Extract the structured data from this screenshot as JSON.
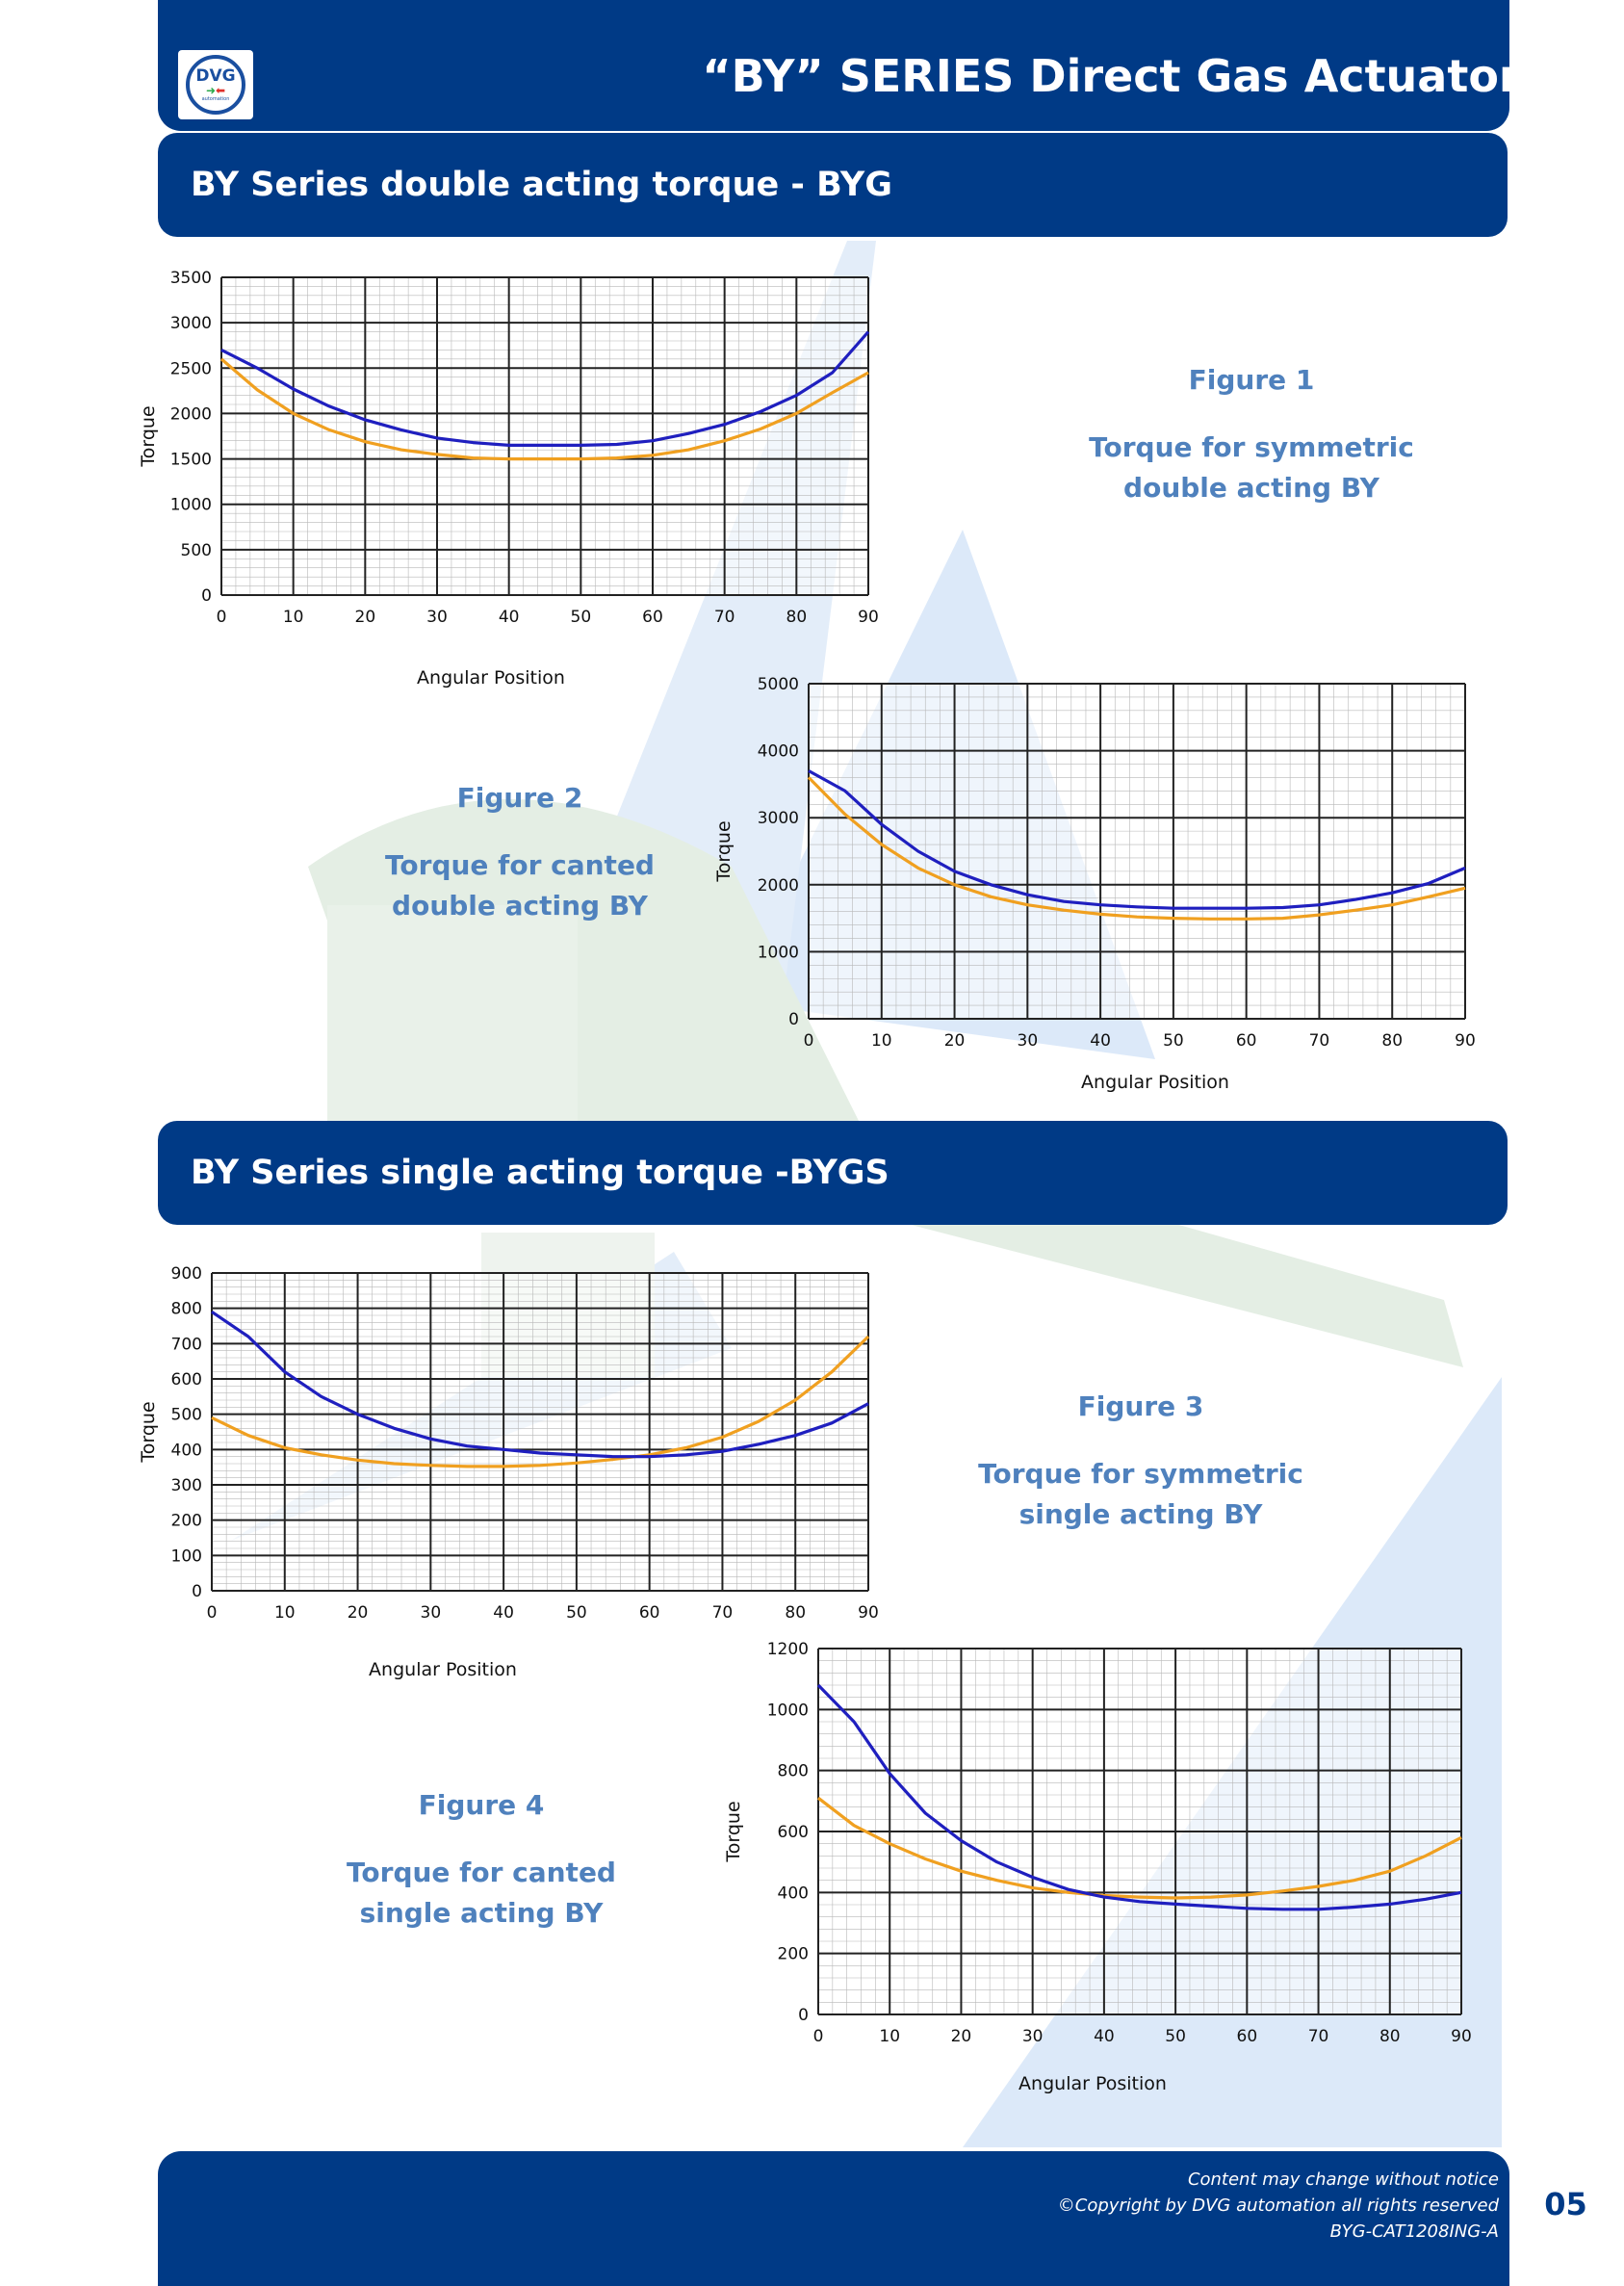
{
  "header": {
    "title": "“BY” SERIES Direct Gas Actuators",
    "logo_text": "DVG",
    "logo_sub": "automation"
  },
  "sections": [
    {
      "title": "BY Series double acting torque - BYG"
    },
    {
      "title": "BY Series single acting torque -BYGS"
    }
  ],
  "figures": [
    {
      "figure_label": "Figure 1",
      "caption_line1": "Torque for symmetric",
      "caption_line2": "double acting BY"
    },
    {
      "figure_label": "Figure 2",
      "caption_line1": "Torque for canted",
      "caption_line2": "double acting BY"
    },
    {
      "figure_label": "Figure 3",
      "caption_line1": "Torque for symmetric",
      "caption_line2": "single acting BY"
    },
    {
      "figure_label": "Figure 4",
      "caption_line1": "Torque for canted",
      "caption_line2": "single acting BY"
    }
  ],
  "colors": {
    "brand_blue": "#003a86",
    "caption_blue": "#4f81bd",
    "series_blue": "#1f1fbf",
    "series_orange": "#f0a020"
  },
  "chart_data": [
    {
      "type": "line",
      "xlabel": "Angular Position",
      "ylabel": "Torque",
      "xlim": [
        0,
        90
      ],
      "ylim": [
        0,
        3500
      ],
      "xticks": [
        0,
        10,
        20,
        30,
        40,
        50,
        60,
        70,
        80,
        90
      ],
      "yticks": [
        0,
        500,
        1000,
        1500,
        2000,
        2500,
        3000,
        3500
      ],
      "grid": true,
      "x": [
        0,
        5,
        10,
        15,
        20,
        25,
        30,
        35,
        40,
        45,
        50,
        55,
        60,
        65,
        70,
        75,
        80,
        85,
        90
      ],
      "series": [
        {
          "color": "#1f1fbf",
          "values": [
            2700,
            2500,
            2270,
            2080,
            1930,
            1820,
            1730,
            1680,
            1650,
            1650,
            1650,
            1660,
            1700,
            1780,
            1880,
            2020,
            2200,
            2450,
            2900
          ]
        },
        {
          "color": "#f0a020",
          "values": [
            2600,
            2260,
            2000,
            1820,
            1690,
            1600,
            1550,
            1510,
            1500,
            1500,
            1500,
            1510,
            1540,
            1600,
            1700,
            1830,
            2000,
            2230,
            2450
          ]
        }
      ]
    },
    {
      "type": "line",
      "xlabel": "Angular Position",
      "ylabel": "Torque",
      "xlim": [
        0,
        90
      ],
      "ylim": [
        0,
        5000
      ],
      "xticks": [
        0,
        10,
        20,
        30,
        40,
        50,
        60,
        70,
        80,
        90
      ],
      "yticks": [
        0,
        1000,
        2000,
        3000,
        4000,
        5000
      ],
      "grid": true,
      "x": [
        0,
        5,
        10,
        15,
        20,
        25,
        30,
        35,
        40,
        45,
        50,
        55,
        60,
        65,
        70,
        75,
        80,
        85,
        90
      ],
      "series": [
        {
          "color": "#1f1fbf",
          "values": [
            3700,
            3400,
            2900,
            2500,
            2200,
            2000,
            1850,
            1750,
            1700,
            1670,
            1650,
            1650,
            1650,
            1660,
            1700,
            1780,
            1880,
            2020,
            2250
          ]
        },
        {
          "color": "#f0a020",
          "values": [
            3600,
            3050,
            2600,
            2250,
            2000,
            1820,
            1700,
            1620,
            1560,
            1520,
            1500,
            1490,
            1490,
            1500,
            1550,
            1620,
            1700,
            1820,
            1950
          ]
        }
      ]
    },
    {
      "type": "line",
      "xlabel": "Angular Position",
      "ylabel": "Torque",
      "xlim": [
        0,
        90
      ],
      "ylim": [
        0,
        900
      ],
      "xticks": [
        0,
        10,
        20,
        30,
        40,
        50,
        60,
        70,
        80,
        90
      ],
      "yticks": [
        0,
        100,
        200,
        300,
        400,
        500,
        600,
        700,
        800,
        900
      ],
      "grid": true,
      "x": [
        0,
        5,
        10,
        15,
        20,
        25,
        30,
        35,
        40,
        45,
        50,
        55,
        60,
        65,
        70,
        75,
        80,
        85,
        90
      ],
      "series": [
        {
          "color": "#1f1fbf",
          "values": [
            790,
            720,
            620,
            550,
            500,
            460,
            430,
            410,
            400,
            390,
            385,
            380,
            380,
            385,
            395,
            415,
            440,
            475,
            530
          ]
        },
        {
          "color": "#f0a020",
          "values": [
            490,
            440,
            405,
            385,
            370,
            360,
            355,
            352,
            352,
            355,
            362,
            372,
            385,
            405,
            435,
            480,
            540,
            620,
            720
          ]
        }
      ]
    },
    {
      "type": "line",
      "xlabel": "Angular Position",
      "ylabel": "Torque",
      "xlim": [
        0,
        90
      ],
      "ylim": [
        0,
        1200
      ],
      "xticks": [
        0,
        10,
        20,
        30,
        40,
        50,
        60,
        70,
        80,
        90
      ],
      "yticks": [
        0,
        200,
        400,
        600,
        800,
        1000,
        1200
      ],
      "grid": true,
      "x": [
        0,
        5,
        10,
        15,
        20,
        25,
        30,
        35,
        40,
        45,
        50,
        55,
        60,
        65,
        70,
        75,
        80,
        85,
        90
      ],
      "series": [
        {
          "color": "#1f1fbf",
          "values": [
            1080,
            960,
            790,
            660,
            570,
            500,
            450,
            410,
            385,
            370,
            362,
            355,
            348,
            345,
            345,
            352,
            362,
            378,
            400
          ]
        },
        {
          "color": "#f0a020",
          "values": [
            710,
            620,
            560,
            510,
            470,
            440,
            415,
            400,
            390,
            385,
            382,
            385,
            392,
            405,
            420,
            440,
            470,
            520,
            580
          ]
        }
      ]
    }
  ],
  "footer": {
    "line1": "Content may change without notice",
    "line2": "©Copyright by DVG automation all rights reserved",
    "line3": "BYG-CAT1208ING-A",
    "page_number": "05"
  }
}
